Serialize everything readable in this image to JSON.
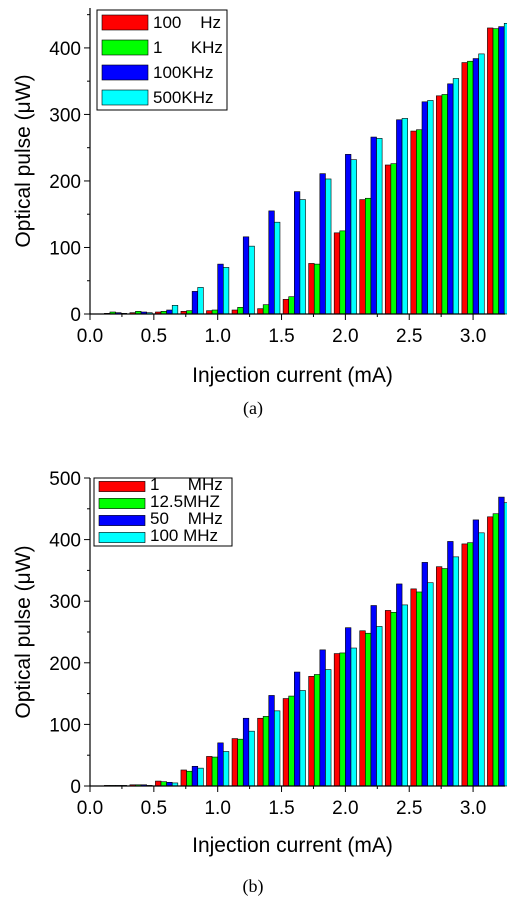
{
  "chart_data": [
    {
      "type": "bar",
      "caption": "(a)",
      "xlabel": "Injection current (mA)",
      "ylabel": "Optical pulse (μW)",
      "xlim": [
        0.0,
        3.25
      ],
      "ylim": [
        0,
        460
      ],
      "xticks": [
        "0.0",
        "0.5",
        "1.0",
        "1.5",
        "2.0",
        "2.5",
        "3.0"
      ],
      "yticks": [
        "0",
        "100",
        "200",
        "300",
        "400"
      ],
      "legend_position": "top-left",
      "x": [
        0.2,
        0.4,
        0.6,
        0.8,
        1.0,
        1.2,
        1.4,
        1.6,
        1.8,
        2.0,
        2.2,
        2.4,
        2.6,
        2.8,
        3.0,
        3.2
      ],
      "series": [
        {
          "name": "100    Hz",
          "color": "#ff0000",
          "values": [
            1,
            2,
            3,
            4,
            5,
            6,
            8,
            22,
            76,
            122,
            172,
            224,
            275,
            328,
            378,
            430
          ]
        },
        {
          "name": "1      KHz",
          "color": "#00ff00",
          "values": [
            3,
            4,
            4,
            5,
            6,
            10,
            14,
            26,
            75,
            125,
            174,
            226,
            277,
            330,
            380,
            429
          ]
        },
        {
          "name": "100KHz",
          "color": "#0000ff",
          "values": [
            2,
            3,
            6,
            34,
            75,
            116,
            155,
            184,
            211,
            240,
            266,
            292,
            319,
            346,
            384,
            432
          ]
        },
        {
          "name": "500KHz",
          "color": "#00ffff",
          "values": [
            1,
            2,
            13,
            40,
            70,
            102,
            138,
            172,
            203,
            232,
            264,
            294,
            321,
            354,
            391,
            437
          ]
        }
      ]
    },
    {
      "type": "bar",
      "caption": "(b)",
      "xlabel": "Injection current (mA)",
      "ylabel": "Optical pulse (μW)",
      "xlim": [
        0.0,
        3.25
      ],
      "ylim": [
        0,
        500
      ],
      "xticks": [
        "0.0",
        "0.5",
        "1.0",
        "1.5",
        "2.0",
        "2.5",
        "3.0"
      ],
      "yticks": [
        "0",
        "100",
        "200",
        "300",
        "400",
        "500"
      ],
      "legend_position": "top-left",
      "x": [
        0.2,
        0.4,
        0.6,
        0.8,
        1.0,
        1.2,
        1.4,
        1.6,
        1.8,
        2.0,
        2.2,
        2.4,
        2.6,
        2.8,
        3.0,
        3.2
      ],
      "series": [
        {
          "name": "1      MHz",
          "color": "#ff0000",
          "values": [
            1,
            2,
            8,
            26,
            48,
            77,
            110,
            142,
            178,
            215,
            252,
            285,
            320,
            356,
            393,
            437
          ]
        },
        {
          "name": "12.5MHZ",
          "color": "#00ff00",
          "values": [
            1,
            2,
            7,
            24,
            47,
            76,
            113,
            146,
            181,
            216,
            248,
            282,
            315,
            353,
            395,
            442
          ]
        },
        {
          "name": "50    MHz",
          "color": "#0000ff",
          "values": [
            1,
            2,
            6,
            32,
            70,
            110,
            147,
            185,
            221,
            257,
            293,
            328,
            363,
            397,
            432,
            469
          ]
        },
        {
          "name": "100 MHz",
          "color": "#00ffff",
          "values": [
            1,
            1,
            5,
            29,
            56,
            89,
            122,
            155,
            189,
            224,
            259,
            294,
            330,
            372,
            411,
            460
          ]
        }
      ]
    }
  ]
}
